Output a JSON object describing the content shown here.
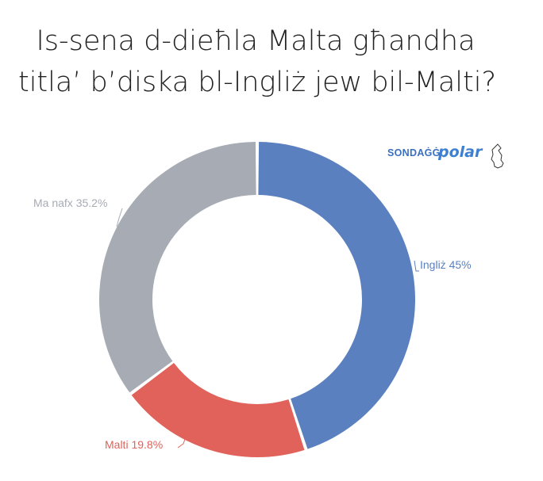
{
  "chart_data": {
    "type": "pie",
    "title": "Is-sena d-dieħla Malta għandha titla' b'diska bl-Ingliż jew bil-Malti?",
    "title_lines": [
      "Is-sena d-dieħla Malta għandha",
      "titla’ b’diska bl-Ingliż jew bil-Malti?"
    ],
    "donut": true,
    "categories": [
      "Ingliż",
      "Malti",
      "Ma nafx"
    ],
    "values": [
      45,
      19.8,
      35.2
    ],
    "unit": "%",
    "labels": [
      "Ingliż 45%",
      "Malti 19.8%",
      "Ma nafx 35.2%"
    ],
    "colors": [
      "#5b80bf",
      "#e0625a",
      "#a6abb4"
    ],
    "start": "12 o'clock, clockwise"
  },
  "brand": {
    "prefix": "SONDAĠĠ",
    "name": "polar",
    "prefix_color": "#3b6fbf",
    "name_color": "#3d7fd0",
    "logo_icon": "map-of-malta-icon"
  }
}
